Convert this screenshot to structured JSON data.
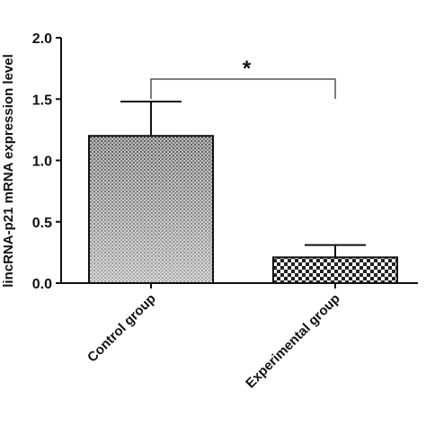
{
  "chart_data": {
    "type": "bar",
    "categories": [
      "Control group",
      "Experimental group"
    ],
    "values": [
      1.2,
      0.21
    ],
    "errors": [
      0.28,
      0.1
    ],
    "ylabel": "lincRNA-p21 mRNA expression level",
    "ylim": [
      0,
      2.0
    ],
    "yticks": [
      "0.0",
      "0.5",
      "1.0",
      "1.5",
      "2.0"
    ],
    "ytick_values": [
      0,
      0.5,
      1.0,
      1.5,
      2.0
    ],
    "significance": "*",
    "patterns": [
      "fine-dot-gradient",
      "checkerboard"
    ],
    "grid": false
  }
}
